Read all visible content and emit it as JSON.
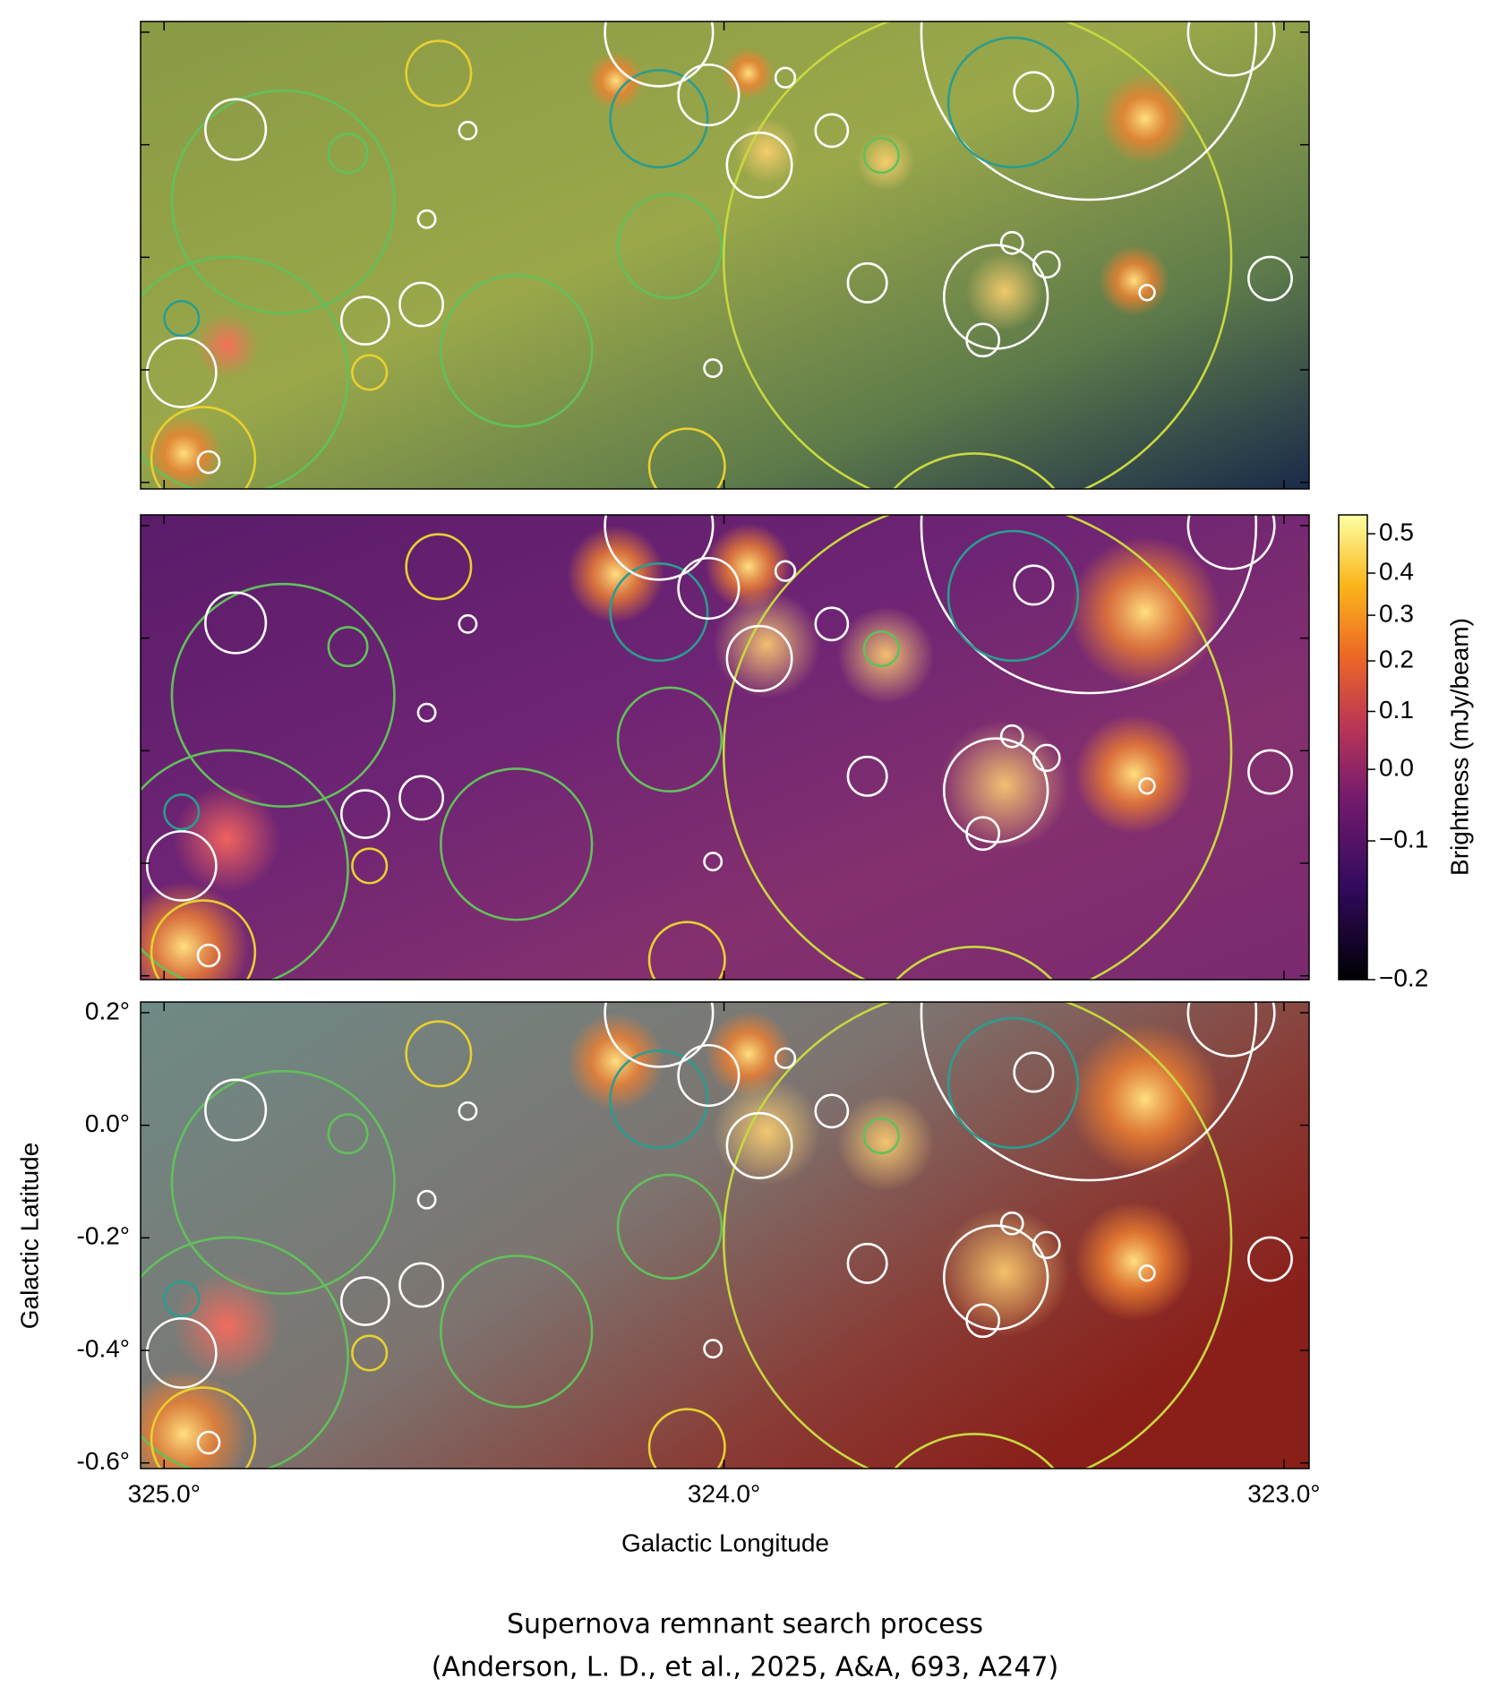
{
  "chart_data": {
    "type": "image",
    "xlabel": "Galactic Longitude",
    "ylabel": "Galactic Latitude",
    "xlim": [
      325.042,
      322.955
    ],
    "xticks": [
      {
        "value": 325.0,
        "label": "325.0°"
      },
      {
        "value": 324.0,
        "label": "324.0°"
      },
      {
        "value": 323.0,
        "label": "323.0°"
      }
    ],
    "ylim": [
      -0.61,
      0.219
    ],
    "yticks": [
      {
        "value": 0.2,
        "label": "0.2°"
      },
      {
        "value": 0.0,
        "label": "0.0°"
      },
      {
        "value": -0.2,
        "label": "-0.2°"
      },
      {
        "value": -0.4,
        "label": "-0.4°"
      },
      {
        "value": -0.6,
        "label": "-0.6°"
      }
    ],
    "colorbar": {
      "label": "Brightness (mJy/beam)",
      "lim": [
        -0.2,
        0.55
      ],
      "scale": "power",
      "ticks": [
        0.5,
        0.4,
        0.3,
        0.2,
        0.1,
        {
          "value": 0.0,
          "label": "0.0"
        },
        {
          "value": -0.1,
          "label": "−0.1"
        },
        {
          "value": -0.2,
          "label": "−0.2"
        }
      ]
    },
    "caption": [
      "Supernova remnant search process",
      "(Anderson, L. D., et al., 2025, A&A, 693, A247)"
    ]
  }
}
